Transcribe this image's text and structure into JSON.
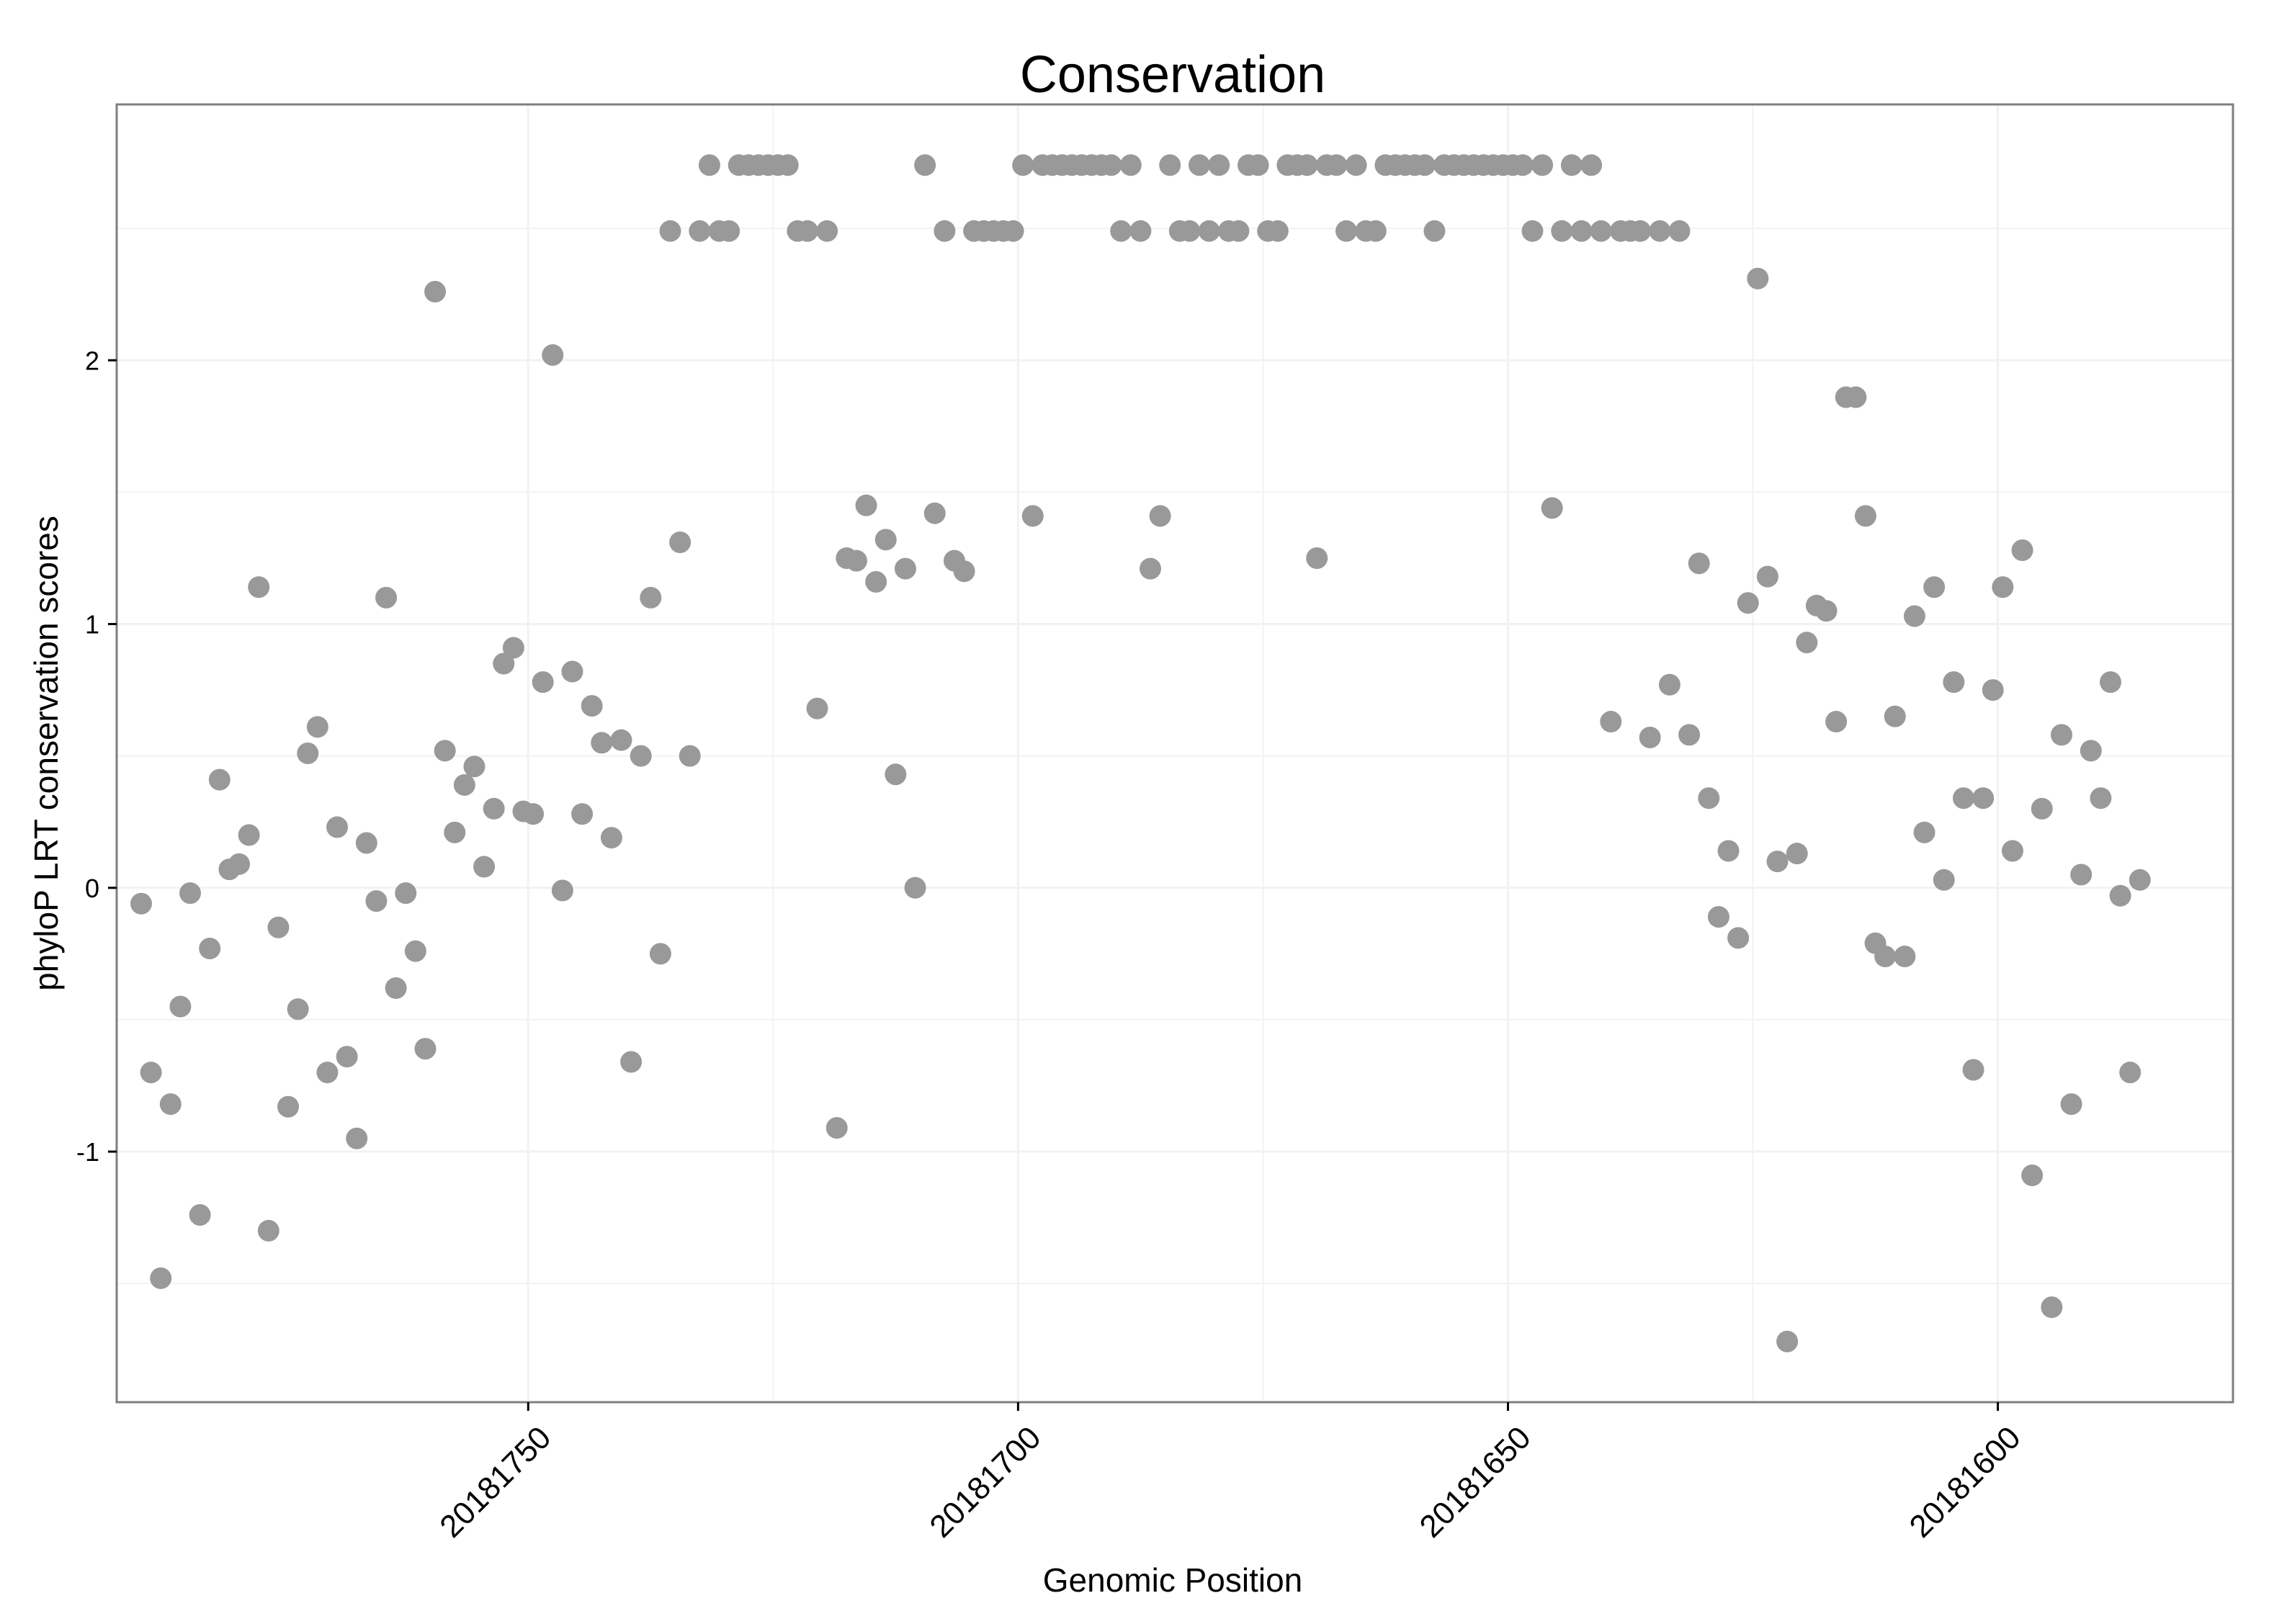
{
  "chart_data": {
    "type": "scatter",
    "title": "Conservation",
    "xlabel": "Genomic Position",
    "ylabel": "phyloP LRT conservation scores",
    "xlim": [
      20181792,
      20181576
    ],
    "ylim": [
      -1.95,
      2.97
    ],
    "x_reversed": true,
    "x_ticks": [
      20181750,
      20181700,
      20181650,
      20181600
    ],
    "x_tick_labels": [
      "20181750",
      "20181700",
      "20181650",
      "20181600"
    ],
    "y_ticks": [
      -1,
      0,
      1,
      2
    ],
    "y_tick_labels": [
      "-1",
      "0",
      "1",
      "2"
    ],
    "grid": true,
    "legend": "none",
    "colors": {
      "point": "#999999",
      "panel_border": "#7f7f7f",
      "grid": "#f2f2f2",
      "text": "#000000"
    },
    "points": [
      {
        "x": 20181789.5,
        "y": -0.06
      },
      {
        "x": 20181788.5,
        "y": -0.7
      },
      {
        "x": 20181787.5,
        "y": -1.48
      },
      {
        "x": 20181786.5,
        "y": -0.82
      },
      {
        "x": 20181785.5,
        "y": -0.45
      },
      {
        "x": 20181784.5,
        "y": -0.02
      },
      {
        "x": 20181783.5,
        "y": -1.24
      },
      {
        "x": 20181782.5,
        "y": -0.23
      },
      {
        "x": 20181781.5,
        "y": 0.41
      },
      {
        "x": 20181780.5,
        "y": 0.07
      },
      {
        "x": 20181779.5,
        "y": 0.09
      },
      {
        "x": 20181778.5,
        "y": 0.2
      },
      {
        "x": 20181777.5,
        "y": 1.14
      },
      {
        "x": 20181776.5,
        "y": -1.3
      },
      {
        "x": 20181775.5,
        "y": -0.15
      },
      {
        "x": 20181774.5,
        "y": -0.83
      },
      {
        "x": 20181773.5,
        "y": -0.46
      },
      {
        "x": 20181772.5,
        "y": 0.51
      },
      {
        "x": 20181771.5,
        "y": 0.61
      },
      {
        "x": 20181770.5,
        "y": -0.7
      },
      {
        "x": 20181769.5,
        "y": 0.23
      },
      {
        "x": 20181768.5,
        "y": -0.64
      },
      {
        "x": 20181767.5,
        "y": -0.95
      },
      {
        "x": 20181766.5,
        "y": 0.17
      },
      {
        "x": 20181765.5,
        "y": -0.05
      },
      {
        "x": 20181764.5,
        "y": 1.1
      },
      {
        "x": 20181763.5,
        "y": -0.38
      },
      {
        "x": 20181762.5,
        "y": -0.02
      },
      {
        "x": 20181761.5,
        "y": -0.24
      },
      {
        "x": 20181760.5,
        "y": -0.61
      },
      {
        "x": 20181759.5,
        "y": 2.26
      },
      {
        "x": 20181758.5,
        "y": 0.52
      },
      {
        "x": 20181757.5,
        "y": 0.21
      },
      {
        "x": 20181756.5,
        "y": 0.39
      },
      {
        "x": 20181755.5,
        "y": 0.46
      },
      {
        "x": 20181754.5,
        "y": 0.08
      },
      {
        "x": 20181753.5,
        "y": 0.3
      },
      {
        "x": 20181752.5,
        "y": 0.85
      },
      {
        "x": 20181751.5,
        "y": 0.91
      },
      {
        "x": 20181750.5,
        "y": 0.29
      },
      {
        "x": 20181749.5,
        "y": 0.28
      },
      {
        "x": 20181748.5,
        "y": 0.78
      },
      {
        "x": 20181747.5,
        "y": 2.02
      },
      {
        "x": 20181746.5,
        "y": -0.01
      },
      {
        "x": 20181745.5,
        "y": 0.82
      },
      {
        "x": 20181744.5,
        "y": 0.28
      },
      {
        "x": 20181743.5,
        "y": 0.69
      },
      {
        "x": 20181742.5,
        "y": 0.55
      },
      {
        "x": 20181741.5,
        "y": 0.19
      },
      {
        "x": 20181740.5,
        "y": 0.56
      },
      {
        "x": 20181739.5,
        "y": -0.66
      },
      {
        "x": 20181738.5,
        "y": 0.5
      },
      {
        "x": 20181737.5,
        "y": 1.1
      },
      {
        "x": 20181736.5,
        "y": -0.25
      },
      {
        "x": 20181735.5,
        "y": 2.49
      },
      {
        "x": 20181734.5,
        "y": 1.31
      },
      {
        "x": 20181733.5,
        "y": 0.5
      },
      {
        "x": 20181732.5,
        "y": 2.49
      },
      {
        "x": 20181731.5,
        "y": 2.74
      },
      {
        "x": 20181730.5,
        "y": 2.49
      },
      {
        "x": 20181729.5,
        "y": 2.49
      },
      {
        "x": 20181728.5,
        "y": 2.74
      },
      {
        "x": 20181727.5,
        "y": 2.74
      },
      {
        "x": 20181726.5,
        "y": 2.74
      },
      {
        "x": 20181725.5,
        "y": 2.74
      },
      {
        "x": 20181724.5,
        "y": 2.74
      },
      {
        "x": 20181723.5,
        "y": 2.74
      },
      {
        "x": 20181722.5,
        "y": 2.49
      },
      {
        "x": 20181721.5,
        "y": 2.49
      },
      {
        "x": 20181720.5,
        "y": 0.68
      },
      {
        "x": 20181719.5,
        "y": 2.49
      },
      {
        "x": 20181718.5,
        "y": -0.91
      },
      {
        "x": 20181717.5,
        "y": 1.25
      },
      {
        "x": 20181716.5,
        "y": 1.24
      },
      {
        "x": 20181715.5,
        "y": 1.45
      },
      {
        "x": 20181714.5,
        "y": 1.16
      },
      {
        "x": 20181713.5,
        "y": 1.32
      },
      {
        "x": 20181712.5,
        "y": 0.43
      },
      {
        "x": 20181711.5,
        "y": 1.21
      },
      {
        "x": 20181710.5,
        "y": 0.0
      },
      {
        "x": 20181709.5,
        "y": 2.74
      },
      {
        "x": 20181708.5,
        "y": 1.42
      },
      {
        "x": 20181707.5,
        "y": 2.49
      },
      {
        "x": 20181706.5,
        "y": 1.24
      },
      {
        "x": 20181705.5,
        "y": 1.2
      },
      {
        "x": 20181704.5,
        "y": 2.49
      },
      {
        "x": 20181703.5,
        "y": 2.49
      },
      {
        "x": 20181702.5,
        "y": 2.49
      },
      {
        "x": 20181701.5,
        "y": 2.49
      },
      {
        "x": 20181700.5,
        "y": 2.49
      },
      {
        "x": 20181699.5,
        "y": 2.74
      },
      {
        "x": 20181698.5,
        "y": 1.41
      },
      {
        "x": 20181697.5,
        "y": 2.74
      },
      {
        "x": 20181696.5,
        "y": 2.74
      },
      {
        "x": 20181695.5,
        "y": 2.74
      },
      {
        "x": 20181694.5,
        "y": 2.74
      },
      {
        "x": 20181693.5,
        "y": 2.74
      },
      {
        "x": 20181692.5,
        "y": 2.74
      },
      {
        "x": 20181691.5,
        "y": 2.74
      },
      {
        "x": 20181690.5,
        "y": 2.74
      },
      {
        "x": 20181689.5,
        "y": 2.49
      },
      {
        "x": 20181688.5,
        "y": 2.74
      },
      {
        "x": 20181687.5,
        "y": 2.49
      },
      {
        "x": 20181686.5,
        "y": 1.21
      },
      {
        "x": 20181685.5,
        "y": 1.41
      },
      {
        "x": 20181684.5,
        "y": 2.74
      },
      {
        "x": 20181683.5,
        "y": 2.49
      },
      {
        "x": 20181682.5,
        "y": 2.49
      },
      {
        "x": 20181681.5,
        "y": 2.74
      },
      {
        "x": 20181680.5,
        "y": 2.49
      },
      {
        "x": 20181679.5,
        "y": 2.74
      },
      {
        "x": 20181678.5,
        "y": 2.49
      },
      {
        "x": 20181677.5,
        "y": 2.49
      },
      {
        "x": 20181676.5,
        "y": 2.74
      },
      {
        "x": 20181675.5,
        "y": 2.74
      },
      {
        "x": 20181674.5,
        "y": 2.49
      },
      {
        "x": 20181673.5,
        "y": 2.49
      },
      {
        "x": 20181672.5,
        "y": 2.74
      },
      {
        "x": 20181671.5,
        "y": 2.74
      },
      {
        "x": 20181670.5,
        "y": 2.74
      },
      {
        "x": 20181669.5,
        "y": 1.25
      },
      {
        "x": 20181668.5,
        "y": 2.74
      },
      {
        "x": 20181667.5,
        "y": 2.74
      },
      {
        "x": 20181666.5,
        "y": 2.49
      },
      {
        "x": 20181665.5,
        "y": 2.74
      },
      {
        "x": 20181664.5,
        "y": 2.49
      },
      {
        "x": 20181663.5,
        "y": 2.49
      },
      {
        "x": 20181662.5,
        "y": 2.74
      },
      {
        "x": 20181661.5,
        "y": 2.74
      },
      {
        "x": 20181660.5,
        "y": 2.74
      },
      {
        "x": 20181659.5,
        "y": 2.74
      },
      {
        "x": 20181658.5,
        "y": 2.74
      },
      {
        "x": 20181657.5,
        "y": 2.49
      },
      {
        "x": 20181656.5,
        "y": 2.74
      },
      {
        "x": 20181655.5,
        "y": 2.74
      },
      {
        "x": 20181654.5,
        "y": 2.74
      },
      {
        "x": 20181653.5,
        "y": 2.74
      },
      {
        "x": 20181652.5,
        "y": 2.74
      },
      {
        "x": 20181651.5,
        "y": 2.74
      },
      {
        "x": 20181650.5,
        "y": 2.74
      },
      {
        "x": 20181649.5,
        "y": 2.74
      },
      {
        "x": 20181648.5,
        "y": 2.74
      },
      {
        "x": 20181647.5,
        "y": 2.49
      },
      {
        "x": 20181646.5,
        "y": 2.74
      },
      {
        "x": 20181645.5,
        "y": 1.44
      },
      {
        "x": 20181644.5,
        "y": 2.49
      },
      {
        "x": 20181643.5,
        "y": 2.74
      },
      {
        "x": 20181642.5,
        "y": 2.49
      },
      {
        "x": 20181641.5,
        "y": 2.74
      },
      {
        "x": 20181640.5,
        "y": 2.49
      },
      {
        "x": 20181639.5,
        "y": 0.63
      },
      {
        "x": 20181638.5,
        "y": 2.49
      },
      {
        "x": 20181637.5,
        "y": 2.49
      },
      {
        "x": 20181636.5,
        "y": 2.49
      },
      {
        "x": 20181635.5,
        "y": 0.57
      },
      {
        "x": 20181634.5,
        "y": 2.49
      },
      {
        "x": 20181633.5,
        "y": 0.77
      },
      {
        "x": 20181632.5,
        "y": 2.49
      },
      {
        "x": 20181631.5,
        "y": 0.58
      },
      {
        "x": 20181630.5,
        "y": 1.23
      },
      {
        "x": 20181629.5,
        "y": 0.34
      },
      {
        "x": 20181628.5,
        "y": -0.11
      },
      {
        "x": 20181627.5,
        "y": 0.14
      },
      {
        "x": 20181626.5,
        "y": -0.19
      },
      {
        "x": 20181625.5,
        "y": 1.08
      },
      {
        "x": 20181624.5,
        "y": 2.31
      },
      {
        "x": 20181623.5,
        "y": 1.18
      },
      {
        "x": 20181622.5,
        "y": 0.1
      },
      {
        "x": 20181621.5,
        "y": -1.72
      },
      {
        "x": 20181620.5,
        "y": 0.13
      },
      {
        "x": 20181619.5,
        "y": 0.93
      },
      {
        "x": 20181618.5,
        "y": 1.07
      },
      {
        "x": 20181617.5,
        "y": 1.05
      },
      {
        "x": 20181616.5,
        "y": 0.63
      },
      {
        "x": 20181615.5,
        "y": 1.86
      },
      {
        "x": 20181614.5,
        "y": 1.86
      },
      {
        "x": 20181613.5,
        "y": 1.41
      },
      {
        "x": 20181612.5,
        "y": -0.21
      },
      {
        "x": 20181611.5,
        "y": -0.26
      },
      {
        "x": 20181610.5,
        "y": 0.65
      },
      {
        "x": 20181609.5,
        "y": -0.26
      },
      {
        "x": 20181608.5,
        "y": 1.03
      },
      {
        "x": 20181607.5,
        "y": 0.21
      },
      {
        "x": 20181606.5,
        "y": 1.14
      },
      {
        "x": 20181605.5,
        "y": 0.03
      },
      {
        "x": 20181604.5,
        "y": 0.78
      },
      {
        "x": 20181603.5,
        "y": 0.34
      },
      {
        "x": 20181602.5,
        "y": -0.69
      },
      {
        "x": 20181601.5,
        "y": 0.34
      },
      {
        "x": 20181600.5,
        "y": 0.75
      },
      {
        "x": 20181599.5,
        "y": 1.14
      },
      {
        "x": 20181598.5,
        "y": 0.14
      },
      {
        "x": 20181597.5,
        "y": 1.28
      },
      {
        "x": 20181596.5,
        "y": -1.09
      },
      {
        "x": 20181595.5,
        "y": 0.3
      },
      {
        "x": 20181594.5,
        "y": -1.59
      },
      {
        "x": 20181593.5,
        "y": 0.58
      },
      {
        "x": 20181592.5,
        "y": -0.82
      },
      {
        "x": 20181591.5,
        "y": 0.05
      },
      {
        "x": 20181590.5,
        "y": 0.52
      },
      {
        "x": 20181589.5,
        "y": 0.34
      },
      {
        "x": 20181588.5,
        "y": 0.78
      },
      {
        "x": 20181587.5,
        "y": -0.03
      },
      {
        "x": 20181586.5,
        "y": -0.7
      },
      {
        "x": 20181585.5,
        "y": 0.03
      }
    ]
  }
}
